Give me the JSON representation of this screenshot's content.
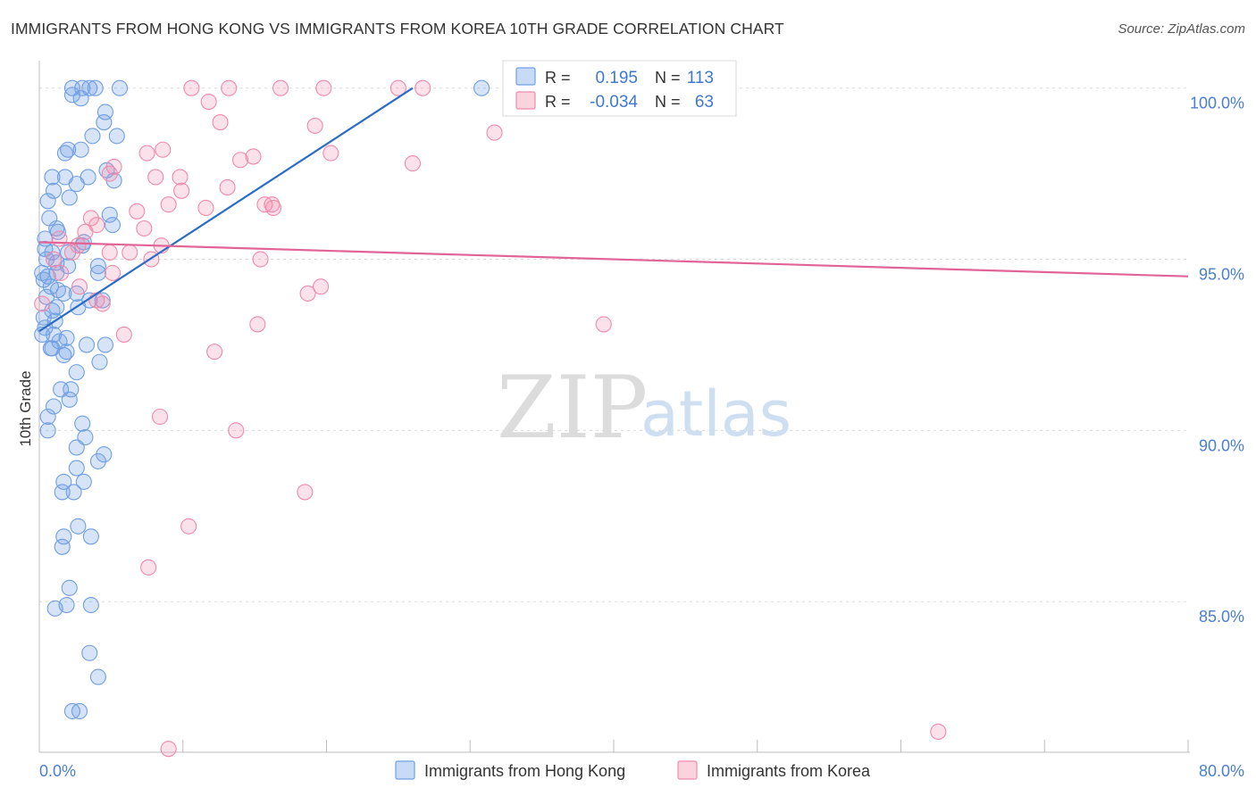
{
  "header": {
    "title": "IMMIGRANTS FROM HONG KONG VS IMMIGRANTS FROM KOREA 10TH GRADE CORRELATION CHART",
    "source": "Source: ZipAtlas.com"
  },
  "watermark": {
    "zip": "ZIP",
    "atlas": "atlas"
  },
  "stats": {
    "r_label": "R =",
    "n_label": "N =",
    "rows": [
      {
        "r": "0.195",
        "n": "113",
        "color": "#6f9fe3"
      },
      {
        "r": "-0.034",
        "n": "63",
        "color": "#f08aaa"
      }
    ]
  },
  "legend": {
    "items": [
      {
        "label": "Immigrants from Hong Kong",
        "color": "#6f9fe3"
      },
      {
        "label": "Immigrants from Korea",
        "color": "#f08aaa"
      }
    ]
  },
  "chart_data": {
    "type": "scatter",
    "title": "IMMIGRANTS FROM HONG KONG VS IMMIGRANTS FROM KOREA 10TH GRADE CORRELATION CHART",
    "xlabel": "",
    "ylabel": "10th Grade",
    "xlim": [
      0,
      80
    ],
    "ylim": [
      80.6,
      100.8
    ],
    "x_ticks": [
      0,
      80
    ],
    "x_tick_labels": [
      "0.0%",
      "80.0%"
    ],
    "y_ticks": [
      100,
      95,
      90,
      85
    ],
    "y_tick_labels": [
      "100.0%",
      "95.0%",
      "90.0%",
      "85.0%"
    ],
    "grid": true,
    "legend_position": "bottom-center",
    "colors": {
      "hong_kong": "#6f9fe3",
      "korea": "#f08aaa",
      "hk_line": "#2b6cc9",
      "korea_line": "#e06496"
    },
    "series": [
      {
        "name": "Immigrants from Hong Kong",
        "trend": {
          "x": [
            0.0,
            26.0
          ],
          "y": [
            92.9,
            100.0
          ]
        },
        "points": [
          [
            2.3,
            100.0
          ],
          [
            3.0,
            100.0
          ],
          [
            3.5,
            100.0
          ],
          [
            3.9,
            100.0
          ],
          [
            5.6,
            100.0
          ],
          [
            30.8,
            100.0
          ],
          [
            2.3,
            99.8
          ],
          [
            2.9,
            99.7
          ],
          [
            4.6,
            99.3
          ],
          [
            4.5,
            99.0
          ],
          [
            5.4,
            98.6
          ],
          [
            3.7,
            98.6
          ],
          [
            2.0,
            98.2
          ],
          [
            1.8,
            98.1
          ],
          [
            2.9,
            98.2
          ],
          [
            4.7,
            97.6
          ],
          [
            0.9,
            97.4
          ],
          [
            1.8,
            97.4
          ],
          [
            5.2,
            97.3
          ],
          [
            2.6,
            97.2
          ],
          [
            3.4,
            97.4
          ],
          [
            1.0,
            97.0
          ],
          [
            2.1,
            96.8
          ],
          [
            0.6,
            96.7
          ],
          [
            4.9,
            96.3
          ],
          [
            0.7,
            96.2
          ],
          [
            5.1,
            96.0
          ],
          [
            1.2,
            95.9
          ],
          [
            1.3,
            95.8
          ],
          [
            0.4,
            95.6
          ],
          [
            3.1,
            95.5
          ],
          [
            3.0,
            95.4
          ],
          [
            0.4,
            95.3
          ],
          [
            0.9,
            95.2
          ],
          [
            2.0,
            95.2
          ],
          [
            0.5,
            95.0
          ],
          [
            1.2,
            94.9
          ],
          [
            2.0,
            94.8
          ],
          [
            4.1,
            94.8
          ],
          [
            0.2,
            94.6
          ],
          [
            0.6,
            94.5
          ],
          [
            1.2,
            94.6
          ],
          [
            4.1,
            94.6
          ],
          [
            0.3,
            94.4
          ],
          [
            0.8,
            94.2
          ],
          [
            1.3,
            94.1
          ],
          [
            1.7,
            94.0
          ],
          [
            0.5,
            93.9
          ],
          [
            2.6,
            94.0
          ],
          [
            3.5,
            93.8
          ],
          [
            4.4,
            93.8
          ],
          [
            2.7,
            93.6
          ],
          [
            1.2,
            93.6
          ],
          [
            0.9,
            93.5
          ],
          [
            0.3,
            93.3
          ],
          [
            1.1,
            93.2
          ],
          [
            0.4,
            93.0
          ],
          [
            0.2,
            92.8
          ],
          [
            1.0,
            92.8
          ],
          [
            1.9,
            92.7
          ],
          [
            1.4,
            92.6
          ],
          [
            3.3,
            92.5
          ],
          [
            4.6,
            92.5
          ],
          [
            0.8,
            92.4
          ],
          [
            0.9,
            92.4
          ],
          [
            1.9,
            92.3
          ],
          [
            1.7,
            92.2
          ],
          [
            4.2,
            92.0
          ],
          [
            2.6,
            91.7
          ],
          [
            1.5,
            91.2
          ],
          [
            2.2,
            91.2
          ],
          [
            2.1,
            90.9
          ],
          [
            1.0,
            90.7
          ],
          [
            0.6,
            90.4
          ],
          [
            0.6,
            90.0
          ],
          [
            3.0,
            90.2
          ],
          [
            3.2,
            89.8
          ],
          [
            2.6,
            89.5
          ],
          [
            4.5,
            89.3
          ],
          [
            4.1,
            89.1
          ],
          [
            2.6,
            88.9
          ],
          [
            1.7,
            88.5
          ],
          [
            3.1,
            88.5
          ],
          [
            1.6,
            88.2
          ],
          [
            2.4,
            88.2
          ],
          [
            2.7,
            87.2
          ],
          [
            3.6,
            86.9
          ],
          [
            1.7,
            86.9
          ],
          [
            1.6,
            86.6
          ],
          [
            2.1,
            85.4
          ],
          [
            1.9,
            84.9
          ],
          [
            3.6,
            84.9
          ],
          [
            1.1,
            84.8
          ],
          [
            3.5,
            83.5
          ],
          [
            4.1,
            82.8
          ],
          [
            2.3,
            81.8
          ],
          [
            2.8,
            81.8
          ]
        ]
      },
      {
        "name": "Immigrants from Korea",
        "trend": {
          "x": [
            0.0,
            80.0
          ],
          "y": [
            95.5,
            94.5
          ]
        },
        "points": [
          [
            10.6,
            100.0
          ],
          [
            13.2,
            100.0
          ],
          [
            16.8,
            100.0
          ],
          [
            19.8,
            100.0
          ],
          [
            25.0,
            100.0
          ],
          [
            26.7,
            100.0
          ],
          [
            11.8,
            99.6
          ],
          [
            12.6,
            99.0
          ],
          [
            19.2,
            98.9
          ],
          [
            31.7,
            98.7
          ],
          [
            8.6,
            98.2
          ],
          [
            7.5,
            98.1
          ],
          [
            14.0,
            97.9
          ],
          [
            14.9,
            98.0
          ],
          [
            20.3,
            98.1
          ],
          [
            26.0,
            97.8
          ],
          [
            5.2,
            97.7
          ],
          [
            4.9,
            97.5
          ],
          [
            8.1,
            97.4
          ],
          [
            9.8,
            97.4
          ],
          [
            9.0,
            96.6
          ],
          [
            9.9,
            97.0
          ],
          [
            11.6,
            96.5
          ],
          [
            13.1,
            97.1
          ],
          [
            15.7,
            96.6
          ],
          [
            16.2,
            96.6
          ],
          [
            16.3,
            96.5
          ],
          [
            6.8,
            96.4
          ],
          [
            3.6,
            96.2
          ],
          [
            4.0,
            96.0
          ],
          [
            7.3,
            95.9
          ],
          [
            3.2,
            95.8
          ],
          [
            1.4,
            95.6
          ],
          [
            2.7,
            95.4
          ],
          [
            8.5,
            95.4
          ],
          [
            4.9,
            95.2
          ],
          [
            6.3,
            95.2
          ],
          [
            2.3,
            95.2
          ],
          [
            1.0,
            95.0
          ],
          [
            7.8,
            95.0
          ],
          [
            15.4,
            95.0
          ],
          [
            1.5,
            94.6
          ],
          [
            5.1,
            94.6
          ],
          [
            2.8,
            94.2
          ],
          [
            19.6,
            94.2
          ],
          [
            18.7,
            94.0
          ],
          [
            0.2,
            93.7
          ],
          [
            4.0,
            93.8
          ],
          [
            4.4,
            93.7
          ],
          [
            15.2,
            93.1
          ],
          [
            39.3,
            93.1
          ],
          [
            5.9,
            92.8
          ],
          [
            12.2,
            92.3
          ],
          [
            8.4,
            90.4
          ],
          [
            13.7,
            90.0
          ],
          [
            18.5,
            88.2
          ],
          [
            10.4,
            87.2
          ],
          [
            7.6,
            86.0
          ],
          [
            62.6,
            81.2
          ],
          [
            9.0,
            80.7
          ]
        ]
      }
    ]
  }
}
